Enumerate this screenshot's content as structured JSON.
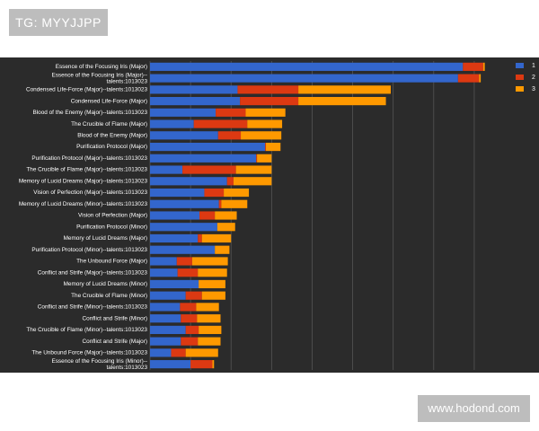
{
  "watermarks": {
    "top": "TG: MYYJJPP",
    "bottom": "www.hodond.com"
  },
  "chart_data": {
    "type": "bar",
    "orientation": "horizontal",
    "stacked": true,
    "categories": [
      "Essence of the Focusing Iris (Major)",
      "Essence of the Focusing Iris (Major)--talents:1013023",
      "Condensed Life-Force (Major)--talents:1013023",
      "Condensed Life-Force (Major)",
      "Blood of the Enemy (Major)--talents:1013023",
      "The Crucible of Flame (Major)",
      "Blood of the Enemy (Major)",
      "Purification Protocol (Major)",
      "Purification Protocol (Major)--talents:1013023",
      "The Crucible of Flame (Major)--talents:1013023",
      "Memory of Lucid Dreams (Major)--talents:1013023",
      "Vision of Perfection (Major)--talents:1013023",
      "Memory of Lucid Dreams (Minor)--talents:1013023",
      "Vision of Perfection (Major)",
      "Purification Protocol (Minor)",
      "Memory of Lucid Dreams (Major)",
      "Purification Protocol (Minor)--talents:1013023",
      "The Unbound Force (Major)",
      "Conflict and Strife (Major)--talents:1013023",
      "Memory of Lucid Dreams (Minor)",
      "The Crucible of Flame (Minor)",
      "Conflict and Strife (Minor)--talents:1013023",
      "Conflict and Strife (Minor)",
      "The Crucible of Flame (Minor)--talents:1013023",
      "Conflict and Strife (Major)",
      "The Unbound Force (Major)--talents:1013023",
      "Essence of the Focusing Iris (Minor)--talents:1013023"
    ],
    "series": [
      {
        "name": "1",
        "color": "#3366cc",
        "values": [
          3860,
          3800,
          1080,
          1110,
          810,
          540,
          840,
          1420,
          1310,
          400,
          950,
          670,
          850,
          610,
          830,
          590,
          800,
          330,
          340,
          600,
          440,
          370,
          380,
          440,
          380,
          260,
          500
        ]
      },
      {
        "name": "2",
        "color": "#dc3912",
        "values": [
          250,
          260,
          750,
          720,
          370,
          660,
          280,
          10,
          10,
          660,
          80,
          240,
          30,
          190,
          0,
          50,
          0,
          190,
          250,
          0,
          200,
          200,
          200,
          160,
          210,
          180,
          270
        ]
      },
      {
        "name": "3",
        "color": "#ff9900",
        "values": [
          20,
          20,
          1140,
          1080,
          490,
          430,
          500,
          180,
          180,
          440,
          470,
          310,
          320,
          270,
          220,
          360,
          180,
          440,
          360,
          330,
          290,
          280,
          290,
          280,
          280,
          400,
          20
        ]
      }
    ],
    "xlim": [
      0,
      4400
    ],
    "grid": true,
    "legend_position": "top-right"
  }
}
